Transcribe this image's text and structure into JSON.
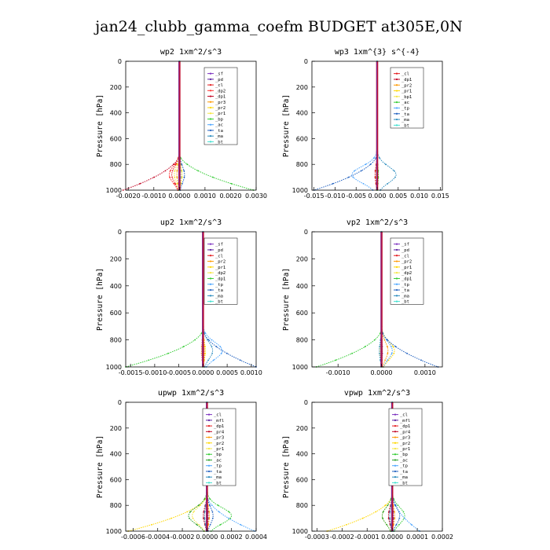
{
  "figure": {
    "title": "jan24_clubb_gamma_coefm  BUDGET at305E,0N"
  },
  "chart_data": [
    {
      "type": "line",
      "title": "wp2   1xm^2/s^3",
      "ylabel": "Pressure  [hPa]",
      "xlim": [
        -0.0021,
        0.003
      ],
      "ylim": [
        1000,
        0
      ],
      "xticks": [
        "-0.0020",
        "-0.0010",
        "0.0000",
        "0.0010",
        "0.0020",
        "0.0030"
      ],
      "xtick_values": [
        -0.002,
        -0.001,
        0.0,
        0.001,
        0.002,
        0.003
      ],
      "yticks": [
        "0",
        "200",
        "400",
        "600",
        "800",
        "1000"
      ],
      "ytick_values": [
        0,
        200,
        400,
        600,
        800,
        1000
      ],
      "series": [
        {
          "name": "_sf",
          "color": "#7b2fbf",
          "amp": 0.0,
          "kind": "flat"
        },
        {
          "name": "_pd",
          "color": "#5a1fa0",
          "amp": 2e-05,
          "kind": "bump"
        },
        {
          "name": "_cl",
          "color": "#e41a1c",
          "amp": -0.0003,
          "kind": "bump"
        },
        {
          "name": "_dp2",
          "color": "#ff3030",
          "amp": -0.0004,
          "kind": "bump"
        },
        {
          "name": "_dp1",
          "color": "#c00020",
          "amp": -0.0022,
          "kind": "surface"
        },
        {
          "name": "_pr3",
          "color": "#ff9900",
          "amp": -0.0001,
          "kind": "bump"
        },
        {
          "name": "_pr2",
          "color": "#ffd700",
          "amp": 0.0001,
          "kind": "bump"
        },
        {
          "name": "_pr1",
          "color": "#f5e642",
          "amp": -0.0002,
          "kind": "bump"
        },
        {
          "name": "_bp",
          "color": "#33cc33",
          "amp": 0.0029,
          "kind": "surface"
        },
        {
          "name": "_ac",
          "color": "#4da6ff",
          "amp": 5e-05,
          "kind": "bump"
        },
        {
          "name": "_ta",
          "color": "#1f5fbf",
          "amp": 0.0002,
          "kind": "bump"
        },
        {
          "name": "_ma",
          "color": "#2b8cbe",
          "amp": -2e-05,
          "kind": "bump"
        },
        {
          "name": "_bt",
          "color": "#40e0d0",
          "amp": 0.0,
          "kind": "flat"
        }
      ]
    },
    {
      "type": "line",
      "title": "wp3   1xm^{3} s^{-4}",
      "ylabel": "",
      "xlim": [
        -0.0155,
        0.0155
      ],
      "ylim": [
        1000,
        0
      ],
      "xticks": [
        "-0.015",
        "-0.010",
        "-0.005",
        "0.000",
        "0.005",
        "0.010",
        "0.015"
      ],
      "xtick_values": [
        -0.015,
        -0.01,
        -0.005,
        0.0,
        0.005,
        0.01,
        0.015
      ],
      "yticks": [
        "0",
        "200",
        "400",
        "600",
        "800",
        "1000"
      ],
      "ytick_values": [
        0,
        200,
        400,
        600,
        800,
        1000
      ],
      "series": [
        {
          "name": "_cl",
          "color": "#e41a1c",
          "amp": 0.0001,
          "kind": "bump"
        },
        {
          "name": "_dp1",
          "color": "#c00020",
          "amp": -0.0005,
          "kind": "bump"
        },
        {
          "name": "_pr2",
          "color": "#ff9900",
          "amp": 0.0002,
          "kind": "bump"
        },
        {
          "name": "_pr1",
          "color": "#ffd700",
          "amp": -0.0002,
          "kind": "bump"
        },
        {
          "name": "_bp1",
          "color": "#f5e642",
          "amp": 0.0001,
          "kind": "bump"
        },
        {
          "name": "_ac",
          "color": "#33cc33",
          "amp": 0.0003,
          "kind": "bump"
        },
        {
          "name": "_tp",
          "color": "#4da6ff",
          "amp": -0.006,
          "kind": "bump"
        },
        {
          "name": "_ta",
          "color": "#1f5fbf",
          "amp": -0.015,
          "kind": "surface"
        },
        {
          "name": "_ma",
          "color": "#2b8cbe",
          "amp": 0.0045,
          "kind": "bump"
        },
        {
          "name": "_bt",
          "color": "#40e0d0",
          "amp": 0.0,
          "kind": "flat"
        }
      ]
    },
    {
      "type": "line",
      "title": "up2   1xm^2/s^3",
      "ylabel": "Pressure  [hPa]",
      "xlim": [
        -0.0016,
        0.0011
      ],
      "ylim": [
        1000,
        0
      ],
      "xticks": [
        "-0.0015",
        "-0.0010",
        "-0.0005",
        "0.0000",
        "0.0005",
        "0.0010"
      ],
      "xtick_values": [
        -0.0015,
        -0.001,
        -0.0005,
        0.0,
        0.0005,
        0.001
      ],
      "yticks": [
        "0",
        "200",
        "400",
        "600",
        "800",
        "1000"
      ],
      "ytick_values": [
        0,
        200,
        400,
        600,
        800,
        1000
      ],
      "series": [
        {
          "name": "_sf",
          "color": "#7b2fbf",
          "amp": 0.0,
          "kind": "flat"
        },
        {
          "name": "_pd",
          "color": "#5a1fa0",
          "amp": 2e-05,
          "kind": "bump"
        },
        {
          "name": "_cl",
          "color": "#e41a1c",
          "amp": -3e-05,
          "kind": "bump"
        },
        {
          "name": "_pr2",
          "color": "#ff9900",
          "amp": 3e-05,
          "kind": "bump"
        },
        {
          "name": "_pr1",
          "color": "#ffd700",
          "amp": 5e-05,
          "kind": "bump"
        },
        {
          "name": "_dp2",
          "color": "#f5e642",
          "amp": -2e-05,
          "kind": "bump"
        },
        {
          "name": "_dp1",
          "color": "#33cc33",
          "amp": -0.0016,
          "kind": "surface"
        },
        {
          "name": "_tp",
          "color": "#4da6ff",
          "amp": 0.0004,
          "kind": "bump"
        },
        {
          "name": "_ta",
          "color": "#1f5fbf",
          "amp": 0.0011,
          "kind": "surface"
        },
        {
          "name": "_ma",
          "color": "#2b8cbe",
          "amp": 0.0002,
          "kind": "bump"
        },
        {
          "name": "_bt",
          "color": "#40e0d0",
          "amp": 0.0,
          "kind": "flat"
        }
      ]
    },
    {
      "type": "line",
      "title": "vp2   1xm^2/s^3",
      "ylabel": "Pressure  [hPa]",
      "xlim": [
        -0.0016,
        0.0014
      ],
      "ylim": [
        1000,
        0
      ],
      "xticks": [
        "-0.0010",
        "0.0000",
        "0.0010"
      ],
      "xtick_values": [
        -0.001,
        0.0,
        0.001
      ],
      "yticks": [
        "0",
        "200",
        "400",
        "600",
        "800",
        "1000"
      ],
      "ytick_values": [
        0,
        200,
        400,
        600,
        800,
        1000
      ],
      "series": [
        {
          "name": "_sf",
          "color": "#7b2fbf",
          "amp": 0.0,
          "kind": "flat"
        },
        {
          "name": "_pd",
          "color": "#5a1fa0",
          "amp": 2e-05,
          "kind": "bump"
        },
        {
          "name": "_cl",
          "color": "#e41a1c",
          "amp": -3e-05,
          "kind": "bump"
        },
        {
          "name": "_pr2",
          "color": "#ff9900",
          "amp": 0.00015,
          "kind": "bump"
        },
        {
          "name": "_pr1",
          "color": "#ffd700",
          "amp": 0.0003,
          "kind": "bump"
        },
        {
          "name": "_dp2",
          "color": "#f5e642",
          "amp": -3e-05,
          "kind": "bump"
        },
        {
          "name": "_dp1",
          "color": "#33cc33",
          "amp": -0.0015,
          "kind": "surface"
        },
        {
          "name": "_tp",
          "color": "#4da6ff",
          "amp": 0.00025,
          "kind": "bump"
        },
        {
          "name": "_ta",
          "color": "#1f5fbf",
          "amp": 0.0013,
          "kind": "surface"
        },
        {
          "name": "_ma",
          "color": "#2b8cbe",
          "amp": -5e-05,
          "kind": "bump"
        },
        {
          "name": "_bt",
          "color": "#40e0d0",
          "amp": 0.0,
          "kind": "flat"
        }
      ]
    },
    {
      "type": "line",
      "title": "upwp   1xm^2/s^3",
      "ylabel": "Pressure  [hPa]",
      "xlim": [
        -0.00066,
        0.0004
      ],
      "ylim": [
        1000,
        0
      ],
      "xticks": [
        "-0.0006",
        "-0.0004",
        "-0.0002",
        "0.0000",
        "0.0002",
        "0.0004"
      ],
      "xtick_values": [
        -0.0006,
        -0.0004,
        -0.0002,
        0.0,
        0.0002,
        0.0004
      ],
      "yticks": [
        "0",
        "200",
        "400",
        "600",
        "800",
        "1000"
      ],
      "ytick_values": [
        0,
        200,
        400,
        600,
        800,
        1000
      ],
      "series": [
        {
          "name": "_cl",
          "color": "#7b2fbf",
          "amp": 0.0,
          "kind": "flat"
        },
        {
          "name": "_mfl",
          "color": "#5a1fa0",
          "amp": 1e-05,
          "kind": "bump"
        },
        {
          "name": "_dp1",
          "color": "#e41a1c",
          "amp": -2e-05,
          "kind": "bump"
        },
        {
          "name": "_pr4",
          "color": "#c00020",
          "amp": -3e-05,
          "kind": "bump"
        },
        {
          "name": "_pr3",
          "color": "#ff9900",
          "amp": 2e-05,
          "kind": "bump"
        },
        {
          "name": "_pr2",
          "color": "#ffd700",
          "amp": -0.00064,
          "kind": "surface"
        },
        {
          "name": "_pr1",
          "color": "#f5e642",
          "amp": -0.00012,
          "kind": "bump"
        },
        {
          "name": "_bp",
          "color": "#33cc33",
          "amp": 0.0002,
          "kind": "bump"
        },
        {
          "name": "_ac",
          "color": "#2ca02c",
          "amp": -0.00015,
          "kind": "bump"
        },
        {
          "name": "_tp",
          "color": "#4da6ff",
          "amp": 0.00039,
          "kind": "surface"
        },
        {
          "name": "_ta",
          "color": "#1f5fbf",
          "amp": 5e-05,
          "kind": "bump"
        },
        {
          "name": "_ma",
          "color": "#2b8cbe",
          "amp": -2e-05,
          "kind": "bump"
        },
        {
          "name": "_bt",
          "color": "#40e0d0",
          "amp": 0.0,
          "kind": "flat"
        }
      ]
    },
    {
      "type": "line",
      "title": "vpwp   1xm^2/s^3",
      "ylabel": "Pressure  [hPa]",
      "xlim": [
        -0.00032,
        0.0002
      ],
      "ylim": [
        1000,
        0
      ],
      "xticks": [
        "-0.0003",
        "-0.0002",
        "-0.0001",
        "0.0000",
        "0.0001",
        "0.0002"
      ],
      "xtick_values": [
        -0.0003,
        -0.0002,
        -0.0001,
        0.0,
        0.0001,
        0.0002
      ],
      "yticks": [
        "0",
        "200",
        "400",
        "600",
        "800",
        "1000"
      ],
      "ytick_values": [
        0,
        200,
        400,
        600,
        800,
        1000
      ],
      "series": [
        {
          "name": "_cl",
          "color": "#7b2fbf",
          "amp": 0.0,
          "kind": "flat"
        },
        {
          "name": "_mfl",
          "color": "#5a1fa0",
          "amp": 5e-06,
          "kind": "bump"
        },
        {
          "name": "_dp1",
          "color": "#e41a1c",
          "amp": -1e-05,
          "kind": "bump"
        },
        {
          "name": "_pr4",
          "color": "#c00020",
          "amp": -1.5e-05,
          "kind": "bump"
        },
        {
          "name": "_pr3",
          "color": "#ff9900",
          "amp": 1e-05,
          "kind": "bump"
        },
        {
          "name": "_pr2",
          "color": "#ffd700",
          "amp": -0.00026,
          "kind": "surface"
        },
        {
          "name": "_pr1",
          "color": "#f5e642",
          "amp": -4e-05,
          "kind": "bump"
        },
        {
          "name": "_bp",
          "color": "#33cc33",
          "amp": 5e-05,
          "kind": "bump"
        },
        {
          "name": "_ac",
          "color": "#2ca02c",
          "amp": -4e-05,
          "kind": "bump"
        },
        {
          "name": "_tp",
          "color": "#4da6ff",
          "amp": 0.00011,
          "kind": "surface"
        },
        {
          "name": "_ta",
          "color": "#1f5fbf",
          "amp": 3e-05,
          "kind": "bump"
        },
        {
          "name": "_ma",
          "color": "#2b8cbe",
          "amp": -1e-05,
          "kind": "bump"
        },
        {
          "name": "_bt",
          "color": "#40e0d0",
          "amp": 0.0,
          "kind": "flat"
        }
      ]
    }
  ]
}
